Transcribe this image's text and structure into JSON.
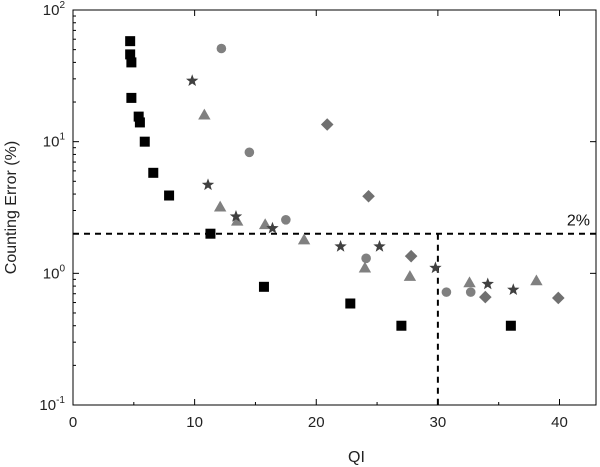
{
  "chart_data": {
    "type": "scatter",
    "xlabel": "QI",
    "ylabel": "Counting Error (%)",
    "xlim": [
      0,
      43
    ],
    "ylim": [
      0.1,
      100
    ],
    "yscale": "log",
    "grid": false,
    "legend": "none",
    "x_ticks": [
      "0",
      "10",
      "20",
      "30",
      "40"
    ],
    "y_ticks": [
      {
        "value": 100,
        "mantissa": "10",
        "exp": "2"
      },
      {
        "value": 10,
        "mantissa": "10",
        "exp": "1"
      },
      {
        "value": 1,
        "mantissa": "10",
        "exp": "0"
      },
      {
        "value": 0.1,
        "mantissa": "10",
        "exp": "-1"
      }
    ],
    "reference_lines": [
      {
        "orientation": "horizontal",
        "value": 2,
        "style": "dashed",
        "label": "2%"
      },
      {
        "orientation": "vertical",
        "value": 30,
        "style": "dashed",
        "label": ""
      }
    ],
    "series": [
      {
        "marker": "square",
        "color": "#000000",
        "points": [
          {
            "x": 4.7,
            "y": 58
          },
          {
            "x": 4.7,
            "y": 46
          },
          {
            "x": 4.8,
            "y": 40
          },
          {
            "x": 4.8,
            "y": 21.5
          },
          {
            "x": 5.4,
            "y": 15.5
          },
          {
            "x": 5.5,
            "y": 14
          },
          {
            "x": 5.9,
            "y": 10
          },
          {
            "x": 6.6,
            "y": 5.8
          },
          {
            "x": 7.9,
            "y": 3.9
          },
          {
            "x": 11.3,
            "y": 2.0
          },
          {
            "x": 15.7,
            "y": 0.79
          },
          {
            "x": 22.8,
            "y": 0.59
          },
          {
            "x": 27.0,
            "y": 0.4
          },
          {
            "x": 36.0,
            "y": 0.4
          }
        ]
      },
      {
        "marker": "circle",
        "color": "#808080",
        "points": [
          {
            "x": 12.2,
            "y": 51
          },
          {
            "x": 14.5,
            "y": 8.3
          },
          {
            "x": 17.5,
            "y": 2.55
          },
          {
            "x": 24.1,
            "y": 1.3
          },
          {
            "x": 30.7,
            "y": 0.72
          },
          {
            "x": 32.7,
            "y": 0.72
          }
        ]
      },
      {
        "marker": "diamond",
        "color": "#707070",
        "points": [
          {
            "x": 20.9,
            "y": 13.5
          },
          {
            "x": 24.3,
            "y": 3.85
          },
          {
            "x": 27.8,
            "y": 1.35
          },
          {
            "x": 33.9,
            "y": 0.66
          },
          {
            "x": 39.9,
            "y": 0.65
          }
        ]
      },
      {
        "marker": "triangle",
        "color": "#808080",
        "points": [
          {
            "x": 10.8,
            "y": 16
          },
          {
            "x": 12.1,
            "y": 3.2
          },
          {
            "x": 13.5,
            "y": 2.5
          },
          {
            "x": 15.8,
            "y": 2.35
          },
          {
            "x": 19.0,
            "y": 1.8
          },
          {
            "x": 24.0,
            "y": 1.1
          },
          {
            "x": 27.7,
            "y": 0.95
          },
          {
            "x": 32.6,
            "y": 0.85
          },
          {
            "x": 38.1,
            "y": 0.88
          }
        ]
      },
      {
        "marker": "star",
        "color": "#404040",
        "points": [
          {
            "x": 9.8,
            "y": 29
          },
          {
            "x": 11.1,
            "y": 4.7
          },
          {
            "x": 13.4,
            "y": 2.7
          },
          {
            "x": 16.4,
            "y": 2.2
          },
          {
            "x": 22.0,
            "y": 1.6
          },
          {
            "x": 25.2,
            "y": 1.6
          },
          {
            "x": 29.8,
            "y": 1.1
          },
          {
            "x": 34.1,
            "y": 0.83
          },
          {
            "x": 36.2,
            "y": 0.75
          }
        ]
      }
    ]
  }
}
